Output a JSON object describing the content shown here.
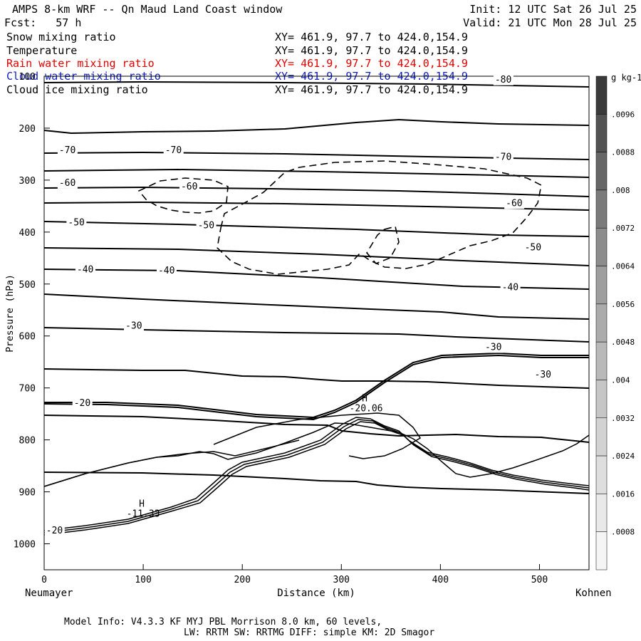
{
  "header": {
    "title": "AMPS 8-km WRF -- Qn Maud Land Coast window",
    "fcst": "Fcst:   57 h",
    "init": "Init: 12 UTC Sat 26 Jul 25",
    "valid": "Valid: 21 UTC Mon 28 Jul 25"
  },
  "fields": [
    {
      "name": "Snow mixing ratio",
      "xy": "XY= 461.9, 97.7 to 424.0,154.9",
      "color": "#000000"
    },
    {
      "name": "Temperature",
      "xy": "XY= 461.9, 97.7 to 424.0,154.9",
      "color": "#000000"
    },
    {
      "name": "Rain water mixing ratio",
      "xy": "XY= 461.9, 97.7 to 424.0,154.9",
      "color": "#e00000"
    },
    {
      "name": "Cloud water mixing ratio",
      "xy": "XY= 461.9, 97.7 to 424.0,154.9",
      "color": "#1020c0"
    },
    {
      "name": "Cloud ice mixing ratio",
      "xy": "XY= 461.9, 97.7 to 424.0,154.9",
      "color": "#000000"
    }
  ],
  "chart_data": {
    "type": "contour cross-section",
    "xlabel": "Distance (km)",
    "ylabel": "Pressure (hPa)",
    "xlim": [
      0,
      550
    ],
    "ylim": [
      1050,
      100
    ],
    "x_ticks": [
      0,
      100,
      200,
      300,
      400,
      500
    ],
    "y_ticks": [
      100,
      200,
      300,
      400,
      500,
      600,
      700,
      800,
      900,
      1000
    ],
    "x_end_labels": {
      "left": "Neumayer",
      "right": "Kohnen"
    },
    "isotherm_labels": [
      {
        "text": "-80",
        "x": 455,
        "p": 112
      },
      {
        "text": "-70",
        "x": 15,
        "p": 248
      },
      {
        "text": "-70",
        "x": 122,
        "p": 248
      },
      {
        "text": "-70",
        "x": 455,
        "p": 261
      },
      {
        "text": "-60",
        "x": 15,
        "p": 311
      },
      {
        "text": "-60",
        "x": 138,
        "p": 318
      },
      {
        "text": "-60",
        "x": 466,
        "p": 350
      },
      {
        "text": "-50",
        "x": 24,
        "p": 387
      },
      {
        "text": "-50",
        "x": 155,
        "p": 393
      },
      {
        "text": "-50",
        "x": 485,
        "p": 435
      },
      {
        "text": "-40",
        "x": 33,
        "p": 478
      },
      {
        "text": "-40",
        "x": 115,
        "p": 480
      },
      {
        "text": "-40",
        "x": 462,
        "p": 512
      },
      {
        "text": "-30",
        "x": 82,
        "p": 586
      },
      {
        "text": "-30",
        "x": 445,
        "p": 627
      },
      {
        "text": "-30",
        "x": 495,
        "p": 680
      },
      {
        "text": "-20",
        "x": 30,
        "p": 735
      },
      {
        "text": "-20",
        "x": 2,
        "p": 980
      }
    ],
    "extrema": [
      {
        "label": "H",
        "value": "-20.06",
        "x": 325,
        "p": 745
      },
      {
        "label": "H",
        "value": "-11.33",
        "x": 100,
        "p": 948
      }
    ],
    "colorbar": {
      "unit": "g kg-1",
      "ticks": [
        ".0096",
        ".0088",
        ".008",
        ".0072",
        ".0064",
        ".0056",
        ".0048",
        ".004",
        ".0032",
        ".0024",
        ".0016",
        ".0008"
      ]
    }
  },
  "footer": {
    "model_info": "Model Info: V4.3.3   KF      MYJ PBL  Morrison              8.0 km,  60 levels,",
    "physics": "LW: RRTM SW: RRTMG   DIFF: simple KM: 2D Smagor"
  }
}
